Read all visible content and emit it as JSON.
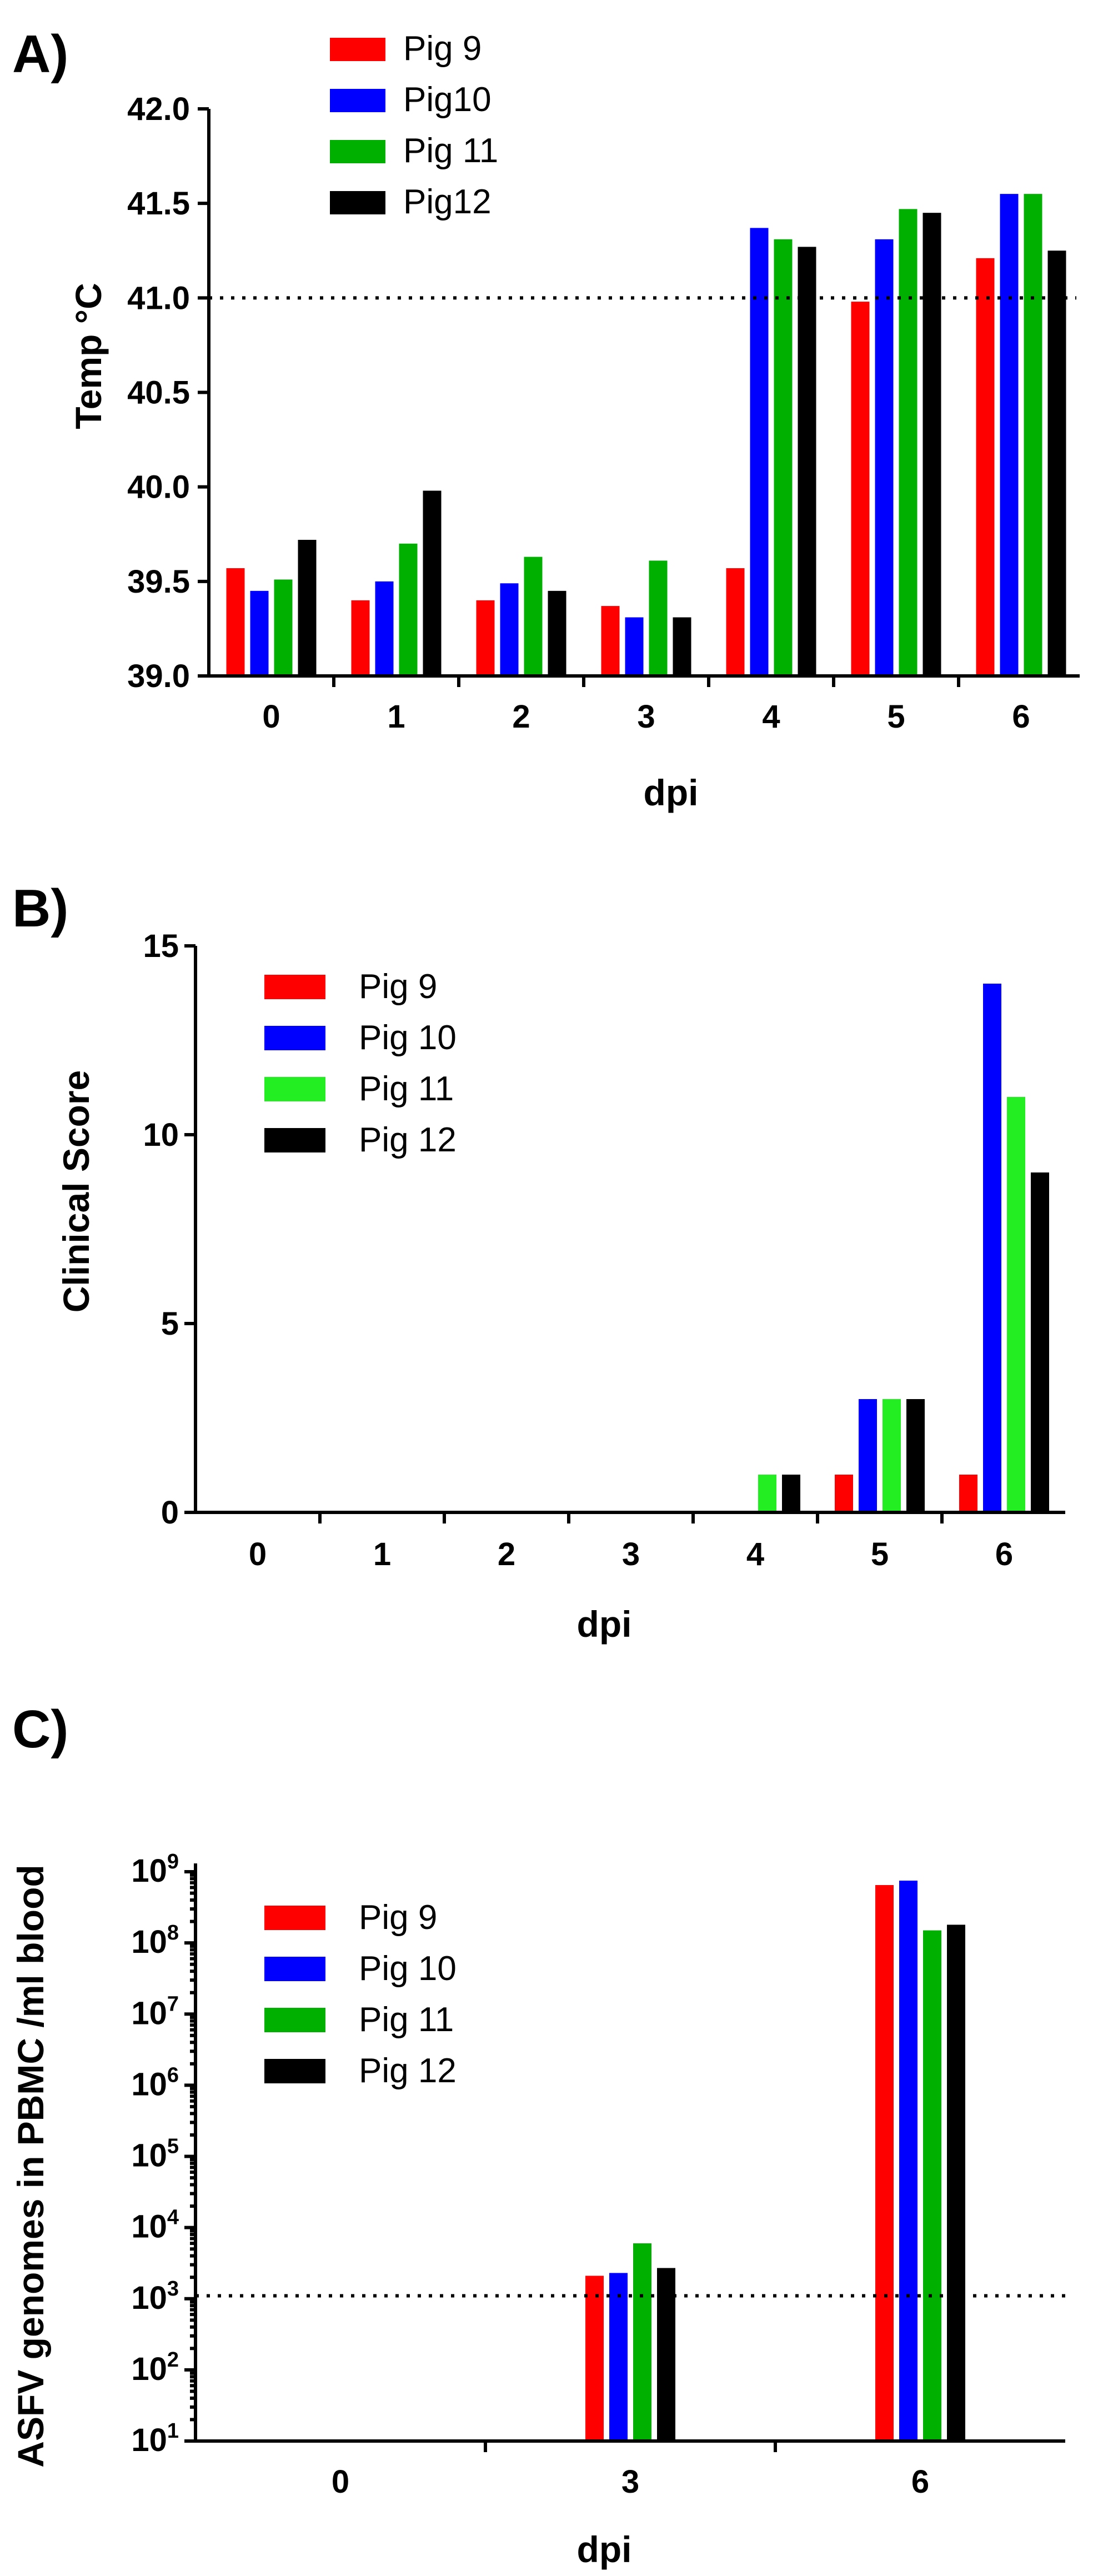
{
  "chart_data": [
    {
      "panel": "A)",
      "type": "bar",
      "xlabel": "dpi",
      "ylabel": "Temp °C",
      "ylim": [
        39.0,
        42.0
      ],
      "yticks": [
        39.0,
        39.5,
        40.0,
        40.5,
        41.0,
        41.5,
        42.0
      ],
      "ytick_labels": [
        "39.0",
        "39.5",
        "40.0",
        "40.5",
        "41.0",
        "41.5",
        "42.0"
      ],
      "categories": [
        "0",
        "1",
        "2",
        "3",
        "4",
        "5",
        "6"
      ],
      "reference_line": 41.0,
      "legend_position": "top-left",
      "series": [
        {
          "name": "Pig 9",
          "color": "#ff0000",
          "values": [
            39.57,
            39.4,
            39.4,
            39.37,
            39.57,
            40.98,
            41.21
          ]
        },
        {
          "name": "Pig10",
          "color": "#0000ff",
          "values": [
            39.45,
            39.5,
            39.49,
            39.31,
            41.37,
            41.31,
            41.55
          ]
        },
        {
          "name": "Pig 11",
          "color": "#00b000",
          "values": [
            39.51,
            39.7,
            39.63,
            39.61,
            41.31,
            41.47,
            41.55
          ]
        },
        {
          "name": "Pig12",
          "color": "#000000",
          "values": [
            39.72,
            39.98,
            39.45,
            39.31,
            41.27,
            41.45,
            41.25
          ]
        }
      ]
    },
    {
      "panel": "B)",
      "type": "bar",
      "xlabel": "dpi",
      "ylabel": "Clinical Score",
      "ylim": [
        0,
        15
      ],
      "yticks": [
        0,
        5,
        10,
        15
      ],
      "ytick_labels": [
        "0",
        "5",
        "10",
        "15"
      ],
      "categories": [
        "0",
        "1",
        "2",
        "3",
        "4",
        "5",
        "6"
      ],
      "legend_position": "top-left",
      "series": [
        {
          "name": "Pig 9",
          "color": "#ff0000",
          "values": [
            0,
            0,
            0,
            0,
            0,
            1,
            1
          ]
        },
        {
          "name": "Pig 10",
          "color": "#0000ff",
          "values": [
            0,
            0,
            0,
            0,
            0,
            3,
            14
          ]
        },
        {
          "name": "Pig 11",
          "color": "#22ee22",
          "values": [
            0,
            0,
            0,
            0,
            1,
            3,
            11
          ]
        },
        {
          "name": "Pig 12",
          "color": "#000000",
          "values": [
            0,
            0,
            0,
            0,
            1,
            3,
            9
          ]
        }
      ]
    },
    {
      "panel": "C)",
      "type": "bar",
      "scale": "log10",
      "xlabel": "dpi",
      "ylabel": "ASFV genomes in PBMC /ml blood",
      "ylim": [
        10,
        1000000000
      ],
      "ytick_exponents": [
        1,
        2,
        3,
        4,
        5,
        6,
        7,
        8,
        9
      ],
      "ytick_base": "10",
      "categories": [
        "0",
        "3",
        "6"
      ],
      "reference_line": 1100,
      "legend_position": "top-left",
      "series": [
        {
          "name": "Pig 9",
          "color": "#ff0000",
          "values": [
            0,
            2100,
            650000000
          ]
        },
        {
          "name": "Pig 10",
          "color": "#0000ff",
          "values": [
            0,
            2300,
            750000000
          ]
        },
        {
          "name": "Pig 11",
          "color": "#00b000",
          "values": [
            0,
            6000,
            150000000
          ]
        },
        {
          "name": "Pig 12",
          "color": "#000000",
          "values": [
            0,
            2700,
            180000000
          ]
        }
      ]
    }
  ]
}
